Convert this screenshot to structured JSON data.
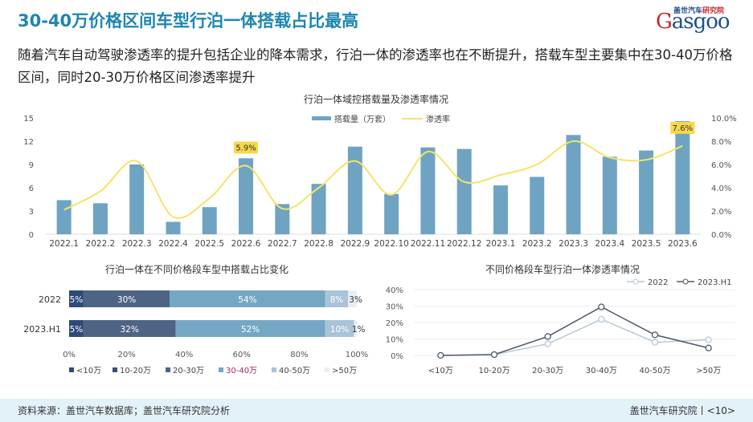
{
  "header": {
    "title": "30-40万价格区间车型行泊一体搭载占比最高",
    "logo_cn": "盖世汽车研究院",
    "logo_en": "Gasgoo"
  },
  "subtitle": "随着汽车自动驾驶渗透率的提升包括企业的降本需求，行泊一体的渗透率也在不断提升，搭载车型主要集中在30-40万价格区间，同时20-30万价格区间渗透率提升",
  "footer": {
    "source": "资料来源：盖世汽车数据库；盖世汽车研究院分析",
    "page": "盖世汽车研究院丨<10>"
  },
  "colors": {
    "bar": "#6fa3c2",
    "line": "#f5e36a",
    "label_bg": "#f7d84a",
    "title": "#1e86b0"
  },
  "chart_data": [
    {
      "type": "bar+line",
      "title": "行泊一体域控搭载量及渗透率情况",
      "categories": [
        "2022.1",
        "2022.2",
        "2022.3",
        "2022.4",
        "2022.5",
        "2022.6",
        "2022.7",
        "2022.8",
        "2022.9",
        "2022.10",
        "2022.11",
        "2022.12",
        "2023.1",
        "2023.2",
        "2023.3",
        "2023.4",
        "2023.5",
        "2023.6"
      ],
      "series": [
        {
          "name": "搭载量（万套）",
          "type": "bar",
          "axis": "left",
          "values": [
            4.4,
            4.0,
            9.0,
            1.6,
            3.5,
            9.8,
            3.9,
            6.5,
            11.3,
            5.2,
            11.2,
            11.0,
            6.3,
            7.4,
            12.8,
            10.0,
            10.8,
            14.6
          ]
        },
        {
          "name": "渗透率",
          "type": "line",
          "axis": "right",
          "values": [
            2.1,
            3.7,
            6.3,
            1.5,
            3.1,
            5.9,
            2.2,
            4.0,
            6.3,
            3.4,
            7.1,
            4.5,
            5.1,
            6.0,
            8.0,
            6.6,
            6.4,
            7.6
          ]
        }
      ],
      "yleft": {
        "ticks": [
          "0",
          "3",
          "6",
          "9",
          "12",
          "15"
        ],
        "lim": [
          0,
          15
        ]
      },
      "yright": {
        "ticks": [
          "0.0%",
          "2.0%",
          "4.0%",
          "6.0%",
          "8.0%",
          "10.0%"
        ],
        "lim": [
          0,
          10
        ]
      },
      "annotations": [
        {
          "category": "2022.6",
          "text": "5.9%"
        },
        {
          "category": "2023.6",
          "text": "7.6%"
        }
      ],
      "legend": "top-right"
    },
    {
      "type": "stacked-bar-horizontal",
      "title": "行泊一体在不同价格段车型中搭载占比变化",
      "categories": [
        "2022",
        "2023.H1"
      ],
      "segments": [
        "<10万",
        "10-20万",
        "20-30万",
        "30-40万",
        "40-50万",
        ">50万"
      ],
      "segment_colors": [
        "#2e4a78",
        "#3a4f72",
        "#4e6485",
        "#74a7c4",
        "#a9c3d8",
        "#e8eef5"
      ],
      "values": [
        [
          5,
          30,
          54,
          8,
          3
        ],
        [
          5,
          32,
          52,
          10,
          1
        ]
      ],
      "value_segments": [
        "<10万",
        "20-30万",
        "30-40万",
        "40-50万",
        ">50万"
      ],
      "labels": [
        [
          "5%",
          "30%",
          "54%",
          "8%",
          "3%"
        ],
        [
          "5%",
          "32%",
          "52%",
          "10%",
          "1%"
        ]
      ],
      "xticks": [
        "0%",
        "20%",
        "40%",
        "60%",
        "80%",
        "100%"
      ],
      "legend": "bottom"
    },
    {
      "type": "line",
      "title": "不同价格段车型行泊一体渗透率情况",
      "categories": [
        "<10万",
        "10-20万",
        "20-30万",
        "30-40万",
        "40-50万",
        ">50万"
      ],
      "series": [
        {
          "name": "2022",
          "color": "#b9c8d6",
          "values": [
            0,
            0.5,
            7,
            22,
            8,
            9.5
          ]
        },
        {
          "name": "2023.H1",
          "color": "#4d5866",
          "values": [
            0,
            0.5,
            11.5,
            29.5,
            12.5,
            4.5
          ]
        }
      ],
      "yticks": [
        "0%",
        "10%",
        "20%",
        "30%",
        "40%"
      ],
      "ylim": [
        0,
        40
      ],
      "legend": "top-right"
    }
  ]
}
